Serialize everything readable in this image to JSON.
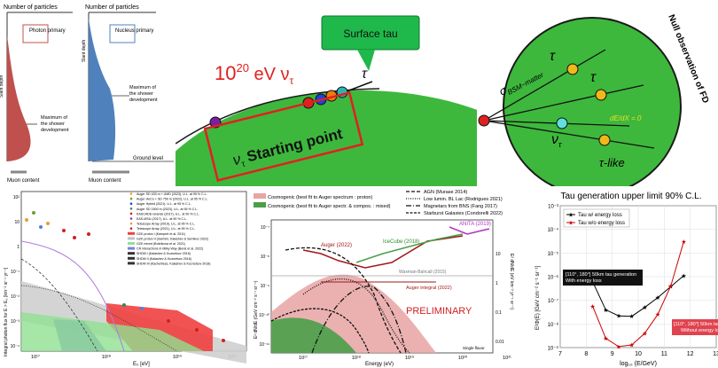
{
  "shower": {
    "left_axis_title": "Number of particles",
    "right_axis_title": "Number of particles",
    "slant_depth": "Slant depth",
    "photon_box": "Photon\nprimary",
    "nucleus_box": "Nucleus\nprimary",
    "max_left": "Maximum of\nthe shower\ndevelopment",
    "max_right": "Maximum of\nthe shower\ndevelopment",
    "ground": "Ground level",
    "muon_left": "Muon content",
    "muon_right": "Muon content",
    "photon_color": "#c0504d",
    "nucleus_color": "#4f81bd"
  },
  "tau": {
    "surface_tau": "Surface tau",
    "energy_label": "10",
    "energy_exp": "20",
    "energy_unit": " eV ν",
    "energy_sub": "τ",
    "tau_symbol": "τ",
    "starting_point": "Starting point",
    "nu_tau": "ν",
    "nu_sub": "τ",
    "earth_color": "#3db83d",
    "callout_color": "#1fb84a"
  },
  "bsm": {
    "null_observation": "Null observation of FD",
    "sigma_label": "σ",
    "sigma_sub": "BSM−matter",
    "tau_top": "τ",
    "tau_mid": "τ",
    "nu": "ν",
    "nu_sub": "τ",
    "dedx": "dE/dX = 0",
    "tau_like": "τ-like"
  },
  "photon_flux": {
    "ylabel": "Integral photon flux for E > E₀ [km⁻² sr⁻¹ yr⁻¹]",
    "xlabel": "E₀ [eV]",
    "xticks": [
      "10¹⁷",
      "10¹⁸",
      "10¹⁹",
      "10²⁰"
    ],
    "yticks": [
      "10²",
      "10",
      "1",
      "10⁻¹",
      "10⁻²",
      "10⁻³",
      "10⁻⁴"
    ],
    "legend": [
      "Auger SD 433 m + UMD (2023), U.L. at 95 % C.L.",
      "Auger HeCo + SD 750 m (2022), U.L. at 95 % C.L.",
      "Auger Hybrid (2021), U.L. at 95 % C.L.",
      "Auger SD 1500 m (2023), U.L. at 95 % C.L.",
      "KASCADE-Grande (2017), U.L. at 90 % C.L.",
      "EAS-MSU (2017), U.L. at 90 % C.L.",
      "Telescope Array (2019), U.L. at 95 % C.L.",
      "Telescope Array (2021), U.L. at 95 % C.L.",
      "GZK proton I (Kampert et al. 2011)",
      "GZK proton II (Gelmini, Kalashev & Semikoz 2022)",
      "GZK mixed (Bobrikova et al. 2021)",
      "CR interactions in Milky Way (Berat et al. 2022)",
      "SHDM I (Kalashev & Kuznetsov 2016)",
      "SHDM II (Kalashev & Kuznetsov 2016)",
      "SHDM III (Kachelriess, Kalashev & Kuznetsov 2018)"
    ]
  },
  "cosmogenic": {
    "legend_left": [
      "Cosmogenic (best fit to Auger spectrum : proton)",
      "Cosmogenic (best fit to Auger spectr. & compos. : mixed)"
    ],
    "legend_right": [
      "AGN (Murase 2014)",
      "Low lumin. BL Lac (Rodrigues 2021)",
      "Magnetars from BNS (Fang 2017)",
      "Starburst Galaxies (Condorelli 2022)"
    ],
    "auger_2022": "Auger (2022)",
    "icecube": "IceCube (2018)",
    "anita": "ANITA (2019)",
    "waxman": "Waxman-Bahcall (2015)",
    "auger_integral": "Auger integral (2022)",
    "preliminary": "PRELIMINARY",
    "single_flavor": "Single flavor",
    "ylabel": "E² dN/dE (GeV cm⁻² s⁻¹ sr⁻¹)",
    "ylabel_right": "E² dN/dE (eV km⁻² yr⁻¹ sr⁻¹)",
    "xlabel": "Energy (eV)",
    "xticks": [
      "10¹⁷",
      "10¹⁸",
      "10¹⁹",
      "10²⁰",
      "10²¹"
    ],
    "yticks": [
      "10⁻⁷",
      "10⁻⁸",
      "10⁻⁹",
      "10⁻¹⁰",
      "10⁻¹¹"
    ],
    "yticks_right": [
      "10",
      "1",
      "0.1",
      "0.01"
    ]
  },
  "chart_data": {
    "type": "line",
    "title": "Tau generation upper limit 90% C.L.",
    "xlabel": "log₁₀ (E/GeV)",
    "ylabel": "E²Φ(E)  [GeV cm⁻² s⁻¹ sr⁻¹]",
    "xlim": [
      7,
      13
    ],
    "ylim_log10": [
      -9,
      -3
    ],
    "xticks": [
      "7",
      "8",
      "9",
      "10",
      "11",
      "12",
      "13"
    ],
    "yticks": [
      "10⁻³",
      "10⁻⁴",
      "10⁻⁵",
      "10⁻⁶",
      "10⁻⁷",
      "10⁻⁸",
      "10⁻⁹"
    ],
    "grid": true,
    "legend_position": "top-left",
    "series": [
      {
        "name": "Tau w/  energy loss",
        "color": "#000000",
        "x": [
          8.25,
          8.75,
          9.25,
          9.75,
          10.25,
          10.75,
          11.25,
          11.75
        ],
        "y": [
          6e-07,
          4e-08,
          2.2e-08,
          2.1e-08,
          5e-08,
          1.3e-07,
          3.8e-07,
          1.1e-06
        ]
      },
      {
        "name": "Tau w/o energy loss",
        "color": "#cc0000",
        "x": [
          8.25,
          8.75,
          9.25,
          9.75,
          10.25,
          10.75,
          11.25,
          11.75
        ],
        "y": [
          5.5e-08,
          2.5e-09,
          1.1e-09,
          1.3e-09,
          4e-09,
          2.5e-08,
          4e-07,
          3e-05
        ]
      }
    ],
    "annotations": [
      {
        "text": "[110°, 180°] 50km tau generation\nWith energy loss",
        "background": "#111111"
      },
      {
        "text": "[110°, 180°] 50km tau ge\nWithout energy lo",
        "background": "#e0434f"
      }
    ]
  }
}
